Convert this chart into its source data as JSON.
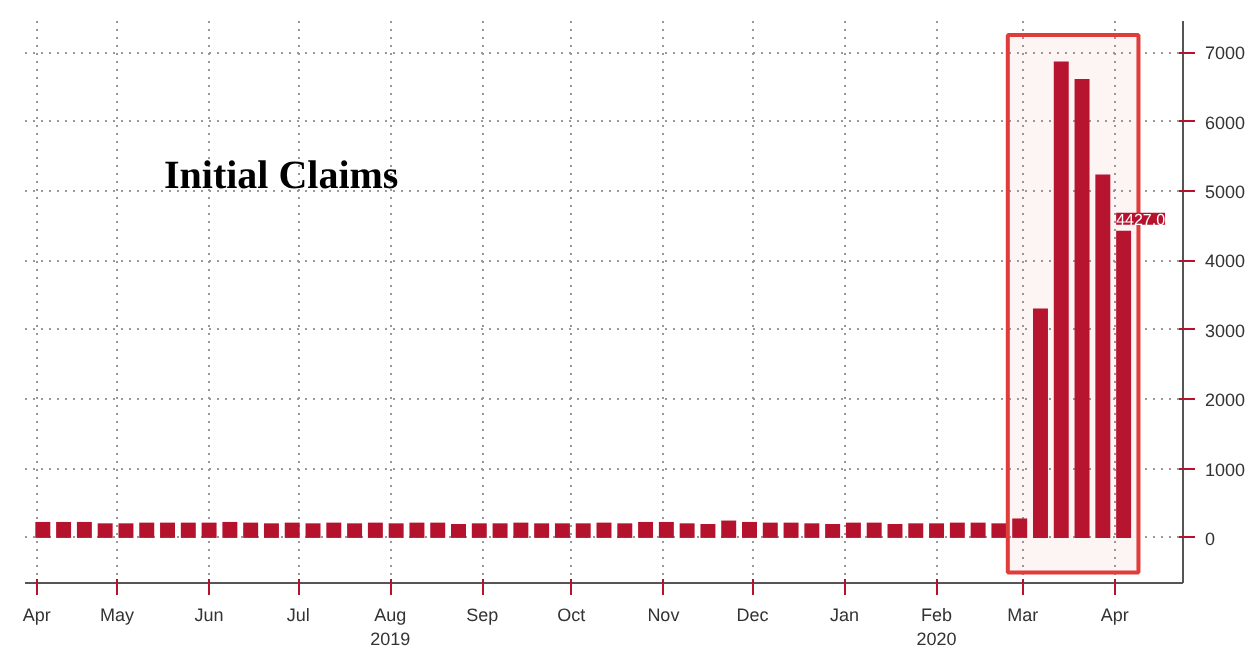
{
  "chart_data": {
    "type": "bar",
    "title": "Initial Claims",
    "x": [
      "2019-04-20",
      "2019-04-27",
      "2019-05-04",
      "2019-05-11",
      "2019-05-18",
      "2019-05-25",
      "2019-06-01",
      "2019-06-08",
      "2019-06-15",
      "2019-06-22",
      "2019-06-29",
      "2019-07-06",
      "2019-07-13",
      "2019-07-20",
      "2019-07-27",
      "2019-08-03",
      "2019-08-10",
      "2019-08-17",
      "2019-08-24",
      "2019-08-31",
      "2019-09-07",
      "2019-09-14",
      "2019-09-21",
      "2019-09-28",
      "2019-10-05",
      "2019-10-12",
      "2019-10-19",
      "2019-10-26",
      "2019-11-02",
      "2019-11-09",
      "2019-11-16",
      "2019-11-23",
      "2019-11-30",
      "2019-12-07",
      "2019-12-14",
      "2019-12-21",
      "2019-12-28",
      "2020-01-04",
      "2020-01-11",
      "2020-01-18",
      "2020-01-25",
      "2020-02-01",
      "2020-02-08",
      "2020-02-15",
      "2020-02-22",
      "2020-02-29",
      "2020-03-07",
      "2020-03-14",
      "2020-03-21",
      "2020-03-28",
      "2020-04-04",
      "2020-04-11",
      "2020-04-18"
    ],
    "values": [
      230,
      230,
      230,
      210,
      210,
      220,
      220,
      220,
      220,
      230,
      220,
      210,
      220,
      210,
      220,
      210,
      220,
      210,
      220,
      220,
      200,
      210,
      210,
      220,
      210,
      210,
      210,
      220,
      210,
      230,
      230,
      210,
      200,
      250,
      230,
      220,
      220,
      210,
      200,
      220,
      220,
      200,
      210,
      210,
      220,
      220,
      210,
      280,
      3307,
      6867,
      6615,
      5237,
      4427
    ],
    "value_labels": [
      null,
      null,
      null,
      null,
      null,
      null,
      null,
      null,
      null,
      null,
      null,
      null,
      null,
      null,
      null,
      null,
      null,
      null,
      null,
      null,
      null,
      null,
      null,
      null,
      null,
      null,
      null,
      null,
      null,
      null,
      null,
      null,
      null,
      null,
      null,
      null,
      null,
      null,
      null,
      null,
      null,
      null,
      null,
      null,
      null,
      null,
      null,
      null,
      null,
      null,
      null,
      null,
      "4427.0"
    ],
    "color": "#b5122e",
    "xlim": [
      "2019-04-14",
      "2020-05-08"
    ],
    "xticks": [
      {
        "value": "2019-04-18",
        "label": "Apr"
      },
      {
        "value": "2019-05-15",
        "label": "May"
      },
      {
        "value": "2019-06-15",
        "label": "Jun"
      },
      {
        "value": "2019-07-15",
        "label": "Jul"
      },
      {
        "value": "2019-08-15",
        "label": "Aug\n2019"
      },
      {
        "value": "2019-09-15",
        "label": "Sep"
      },
      {
        "value": "2019-10-15",
        "label": "Oct"
      },
      {
        "value": "2019-11-15",
        "label": "Nov"
      },
      {
        "value": "2019-12-15",
        "label": "Dec"
      },
      {
        "value": "2020-01-15",
        "label": "Jan"
      },
      {
        "value": "2020-02-15",
        "label": "Feb\n2020"
      },
      {
        "value": "2020-03-15",
        "label": "Mar"
      },
      {
        "value": "2020-04-15",
        "label": "Apr"
      }
    ],
    "ylim": [
      -650,
      7450
    ],
    "yticks": [
      0,
      1000,
      2000,
      3000,
      4000,
      5000,
      6000,
      7000
    ],
    "bands": [
      {
        "axis": "x",
        "from": "2020-03-10",
        "to": "2020-04-23",
        "label": null,
        "color": "#e03c3c"
      }
    ],
    "grid": true
  }
}
